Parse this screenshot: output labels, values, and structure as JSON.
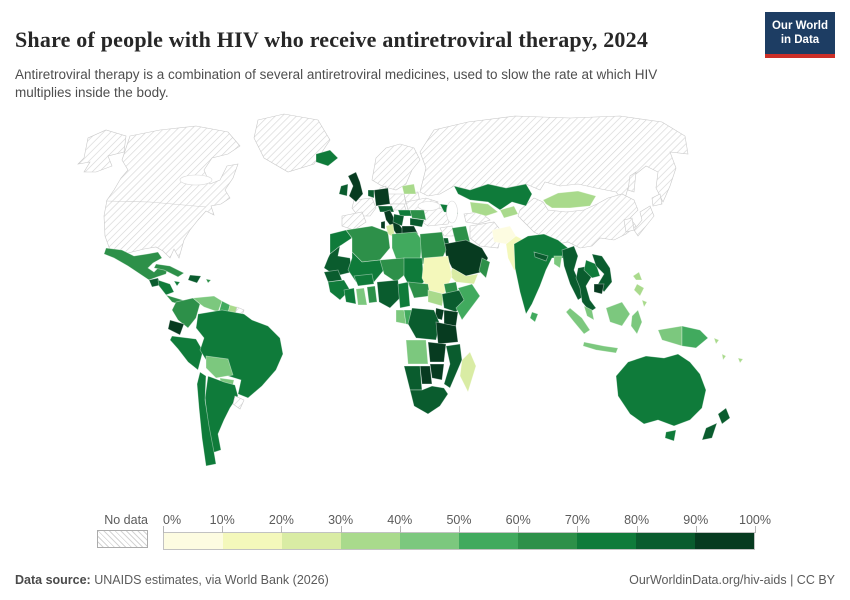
{
  "header": {
    "title": "Share of people with HIV who receive antiretroviral therapy, 2024",
    "subtitle": "Antiretroviral therapy is a combination of several antiretroviral medicines, used to slow the rate at which HIV multiplies inside the body.",
    "logo": {
      "line1": "Our World",
      "line2": "in Data",
      "bg_color": "#1d3d63",
      "accent_color": "#cc2f28"
    }
  },
  "footer": {
    "source_label": "Data source:",
    "source_text": " UNAIDS estimates, via World Bank (2026)",
    "right_text": "OurWorldinData.org/hiv-aids | CC BY"
  },
  "chart_data": {
    "type": "choropleth",
    "title": "Share of people with HIV who receive antiretroviral therapy, 2024",
    "year": "2024",
    "unit": "%",
    "no_data_label": "No data",
    "bin_labels": [
      "0%",
      "10%",
      "20%",
      "30%",
      "40%",
      "50%",
      "60%",
      "70%",
      "80%",
      "90%",
      "100%"
    ],
    "bin_ranges": [
      "0-10%",
      "10-20%",
      "20-30%",
      "30-40%",
      "40-50%",
      "50-60%",
      "60-70%",
      "70-80%",
      "80-90%",
      "90-100%"
    ],
    "colors": [
      "#fdfce1",
      "#f4f8bb",
      "#d9eca4",
      "#a9da8c",
      "#7cc87e",
      "#41aa5e",
      "#2d9049",
      "#0f7b3a",
      "#0a5c2e",
      "#073b20"
    ],
    "no_data_pattern": "gray-diagonal-hatch",
    "legend_position": "bottom",
    "countries": [
      {
        "id": "alaska",
        "bin": -1
      },
      {
        "id": "canada-usa",
        "bin": -1
      },
      {
        "id": "greenland",
        "bin": -1
      },
      {
        "id": "france",
        "bin": -1
      },
      {
        "id": "iberia",
        "bin": -1
      },
      {
        "id": "scandinavia",
        "bin": -1
      },
      {
        "id": "denmark",
        "bin": -1
      },
      {
        "id": "poland",
        "bin": -1
      },
      {
        "id": "czech-slovakia",
        "bin": -1
      },
      {
        "id": "belarus",
        "bin": -1
      },
      {
        "id": "ukraine",
        "bin": -1
      },
      {
        "id": "russia",
        "bin": -1
      },
      {
        "id": "sakhalin",
        "bin": -1
      },
      {
        "id": "turkey",
        "bin": -1
      },
      {
        "id": "syria",
        "bin": -1
      },
      {
        "id": "iran",
        "bin": -1
      },
      {
        "id": "turkmenistan",
        "bin": -1
      },
      {
        "id": "china",
        "bin": -1
      },
      {
        "id": "japan-hokkaido",
        "bin": -1
      },
      {
        "id": "japan-honshu",
        "bin": -1
      },
      {
        "id": "south-korea",
        "bin": -1
      },
      {
        "id": "uruguay",
        "bin": -1
      },
      {
        "id": "french-guiana",
        "bin": -1
      },
      {
        "id": "iceland",
        "bin": 7
      },
      {
        "id": "uk",
        "bin": 9
      },
      {
        "id": "ireland",
        "bin": 8
      },
      {
        "id": "germany",
        "bin": 9
      },
      {
        "id": "benelux",
        "bin": 8
      },
      {
        "id": "alps",
        "bin": 8
      },
      {
        "id": "italy",
        "bin": 9
      },
      {
        "id": "sicily",
        "bin": 9
      },
      {
        "id": "sardinia",
        "bin": 9
      },
      {
        "id": "baltics",
        "bin": 3
      },
      {
        "id": "hungary",
        "bin": 7
      },
      {
        "id": "balkans",
        "bin": 8
      },
      {
        "id": "romania",
        "bin": 6
      },
      {
        "id": "bulgaria",
        "bin": 8
      },
      {
        "id": "greece",
        "bin": 9
      },
      {
        "id": "caucasus",
        "bin": 7
      },
      {
        "id": "kazakhstan",
        "bin": 7
      },
      {
        "id": "uzbekistan",
        "bin": 3
      },
      {
        "id": "kyrgyzstan-tajikistan",
        "bin": 3
      },
      {
        "id": "mongolia",
        "bin": 3
      },
      {
        "id": "iraq",
        "bin": 6
      },
      {
        "id": "israel-jordan",
        "bin": 8
      },
      {
        "id": "saudi-arabia",
        "bin": 9
      },
      {
        "id": "yemen",
        "bin": 2
      },
      {
        "id": "oman",
        "bin": 6
      },
      {
        "id": "afghanistan",
        "bin": 0
      },
      {
        "id": "pakistan",
        "bin": 1
      },
      {
        "id": "india",
        "bin": 7
      },
      {
        "id": "sri-lanka",
        "bin": 5
      },
      {
        "id": "nepal",
        "bin": 8
      },
      {
        "id": "bangladesh",
        "bin": 4
      },
      {
        "id": "myanmar",
        "bin": 8
      },
      {
        "id": "thailand",
        "bin": 8
      },
      {
        "id": "laos",
        "bin": 7
      },
      {
        "id": "vietnam",
        "bin": 8
      },
      {
        "id": "cambodia",
        "bin": 9
      },
      {
        "id": "malaysia",
        "bin": 4
      },
      {
        "id": "sumatra",
        "bin": 4
      },
      {
        "id": "java",
        "bin": 4
      },
      {
        "id": "borneo",
        "bin": 4
      },
      {
        "id": "sulawesi",
        "bin": 4
      },
      {
        "id": "philippines",
        "bin": 3
      },
      {
        "id": "indonesia-papua",
        "bin": 4
      },
      {
        "id": "papua-new-guinea",
        "bin": 5
      },
      {
        "id": "solomon-islands",
        "bin": 3
      },
      {
        "id": "vanuatu",
        "bin": 3
      },
      {
        "id": "fiji",
        "bin": 3
      },
      {
        "id": "australia",
        "bin": 7
      },
      {
        "id": "tasmania",
        "bin": 7
      },
      {
        "id": "new-zealand",
        "bin": 8
      },
      {
        "id": "mexico",
        "bin": 6
      },
      {
        "id": "guatemala",
        "bin": 8
      },
      {
        "id": "honduras-nicaragua",
        "bin": 7
      },
      {
        "id": "costa-rica-panama",
        "bin": 6
      },
      {
        "id": "cuba",
        "bin": 6
      },
      {
        "id": "jamaica",
        "bin": 7
      },
      {
        "id": "hispaniola",
        "bin": 8
      },
      {
        "id": "puerto-rico",
        "bin": 6
      },
      {
        "id": "colombia",
        "bin": 6
      },
      {
        "id": "venezuela",
        "bin": 4
      },
      {
        "id": "guyana",
        "bin": 5
      },
      {
        "id": "suriname",
        "bin": 3
      },
      {
        "id": "ecuador",
        "bin": 9
      },
      {
        "id": "peru",
        "bin": 7
      },
      {
        "id": "brazil",
        "bin": 7
      },
      {
        "id": "bolivia",
        "bin": 4
      },
      {
        "id": "paraguay",
        "bin": 4
      },
      {
        "id": "argentina",
        "bin": 7
      },
      {
        "id": "chile",
        "bin": 7
      },
      {
        "id": "morocco",
        "bin": 7
      },
      {
        "id": "mauritania",
        "bin": 8
      },
      {
        "id": "algeria",
        "bin": 6
      },
      {
        "id": "tunisia",
        "bin": 2
      },
      {
        "id": "libya",
        "bin": 5
      },
      {
        "id": "egypt",
        "bin": 6
      },
      {
        "id": "mali",
        "bin": 7
      },
      {
        "id": "niger",
        "bin": 6
      },
      {
        "id": "chad",
        "bin": 7
      },
      {
        "id": "sudan",
        "bin": 1
      },
      {
        "id": "senegal",
        "bin": 8
      },
      {
        "id": "guinea-group",
        "bin": 7
      },
      {
        "id": "cote-divoire",
        "bin": 7
      },
      {
        "id": "ghana",
        "bin": 4
      },
      {
        "id": "togo-benin",
        "bin": 6
      },
      {
        "id": "burkina-faso",
        "bin": 7
      },
      {
        "id": "nigeria",
        "bin": 8
      },
      {
        "id": "cameroon",
        "bin": 7
      },
      {
        "id": "central-african-republic",
        "bin": 6
      },
      {
        "id": "south-sudan",
        "bin": 3
      },
      {
        "id": "eritrea-djibouti",
        "bin": 6
      },
      {
        "id": "ethiopia",
        "bin": 8
      },
      {
        "id": "somalia",
        "bin": 5
      },
      {
        "id": "kenya",
        "bin": 9
      },
      {
        "id": "uganda",
        "bin": 9
      },
      {
        "id": "gabon",
        "bin": 4
      },
      {
        "id": "congo",
        "bin": 5
      },
      {
        "id": "drc",
        "bin": 8
      },
      {
        "id": "tanzania",
        "bin": 9
      },
      {
        "id": "angola",
        "bin": 4
      },
      {
        "id": "zambia",
        "bin": 9
      },
      {
        "id": "mozambique",
        "bin": 8
      },
      {
        "id": "zimbabwe",
        "bin": 9
      },
      {
        "id": "botswana",
        "bin": 9
      },
      {
        "id": "namibia",
        "bin": 8
      },
      {
        "id": "south-africa",
        "bin": 8
      },
      {
        "id": "madagascar",
        "bin": 2
      }
    ]
  }
}
